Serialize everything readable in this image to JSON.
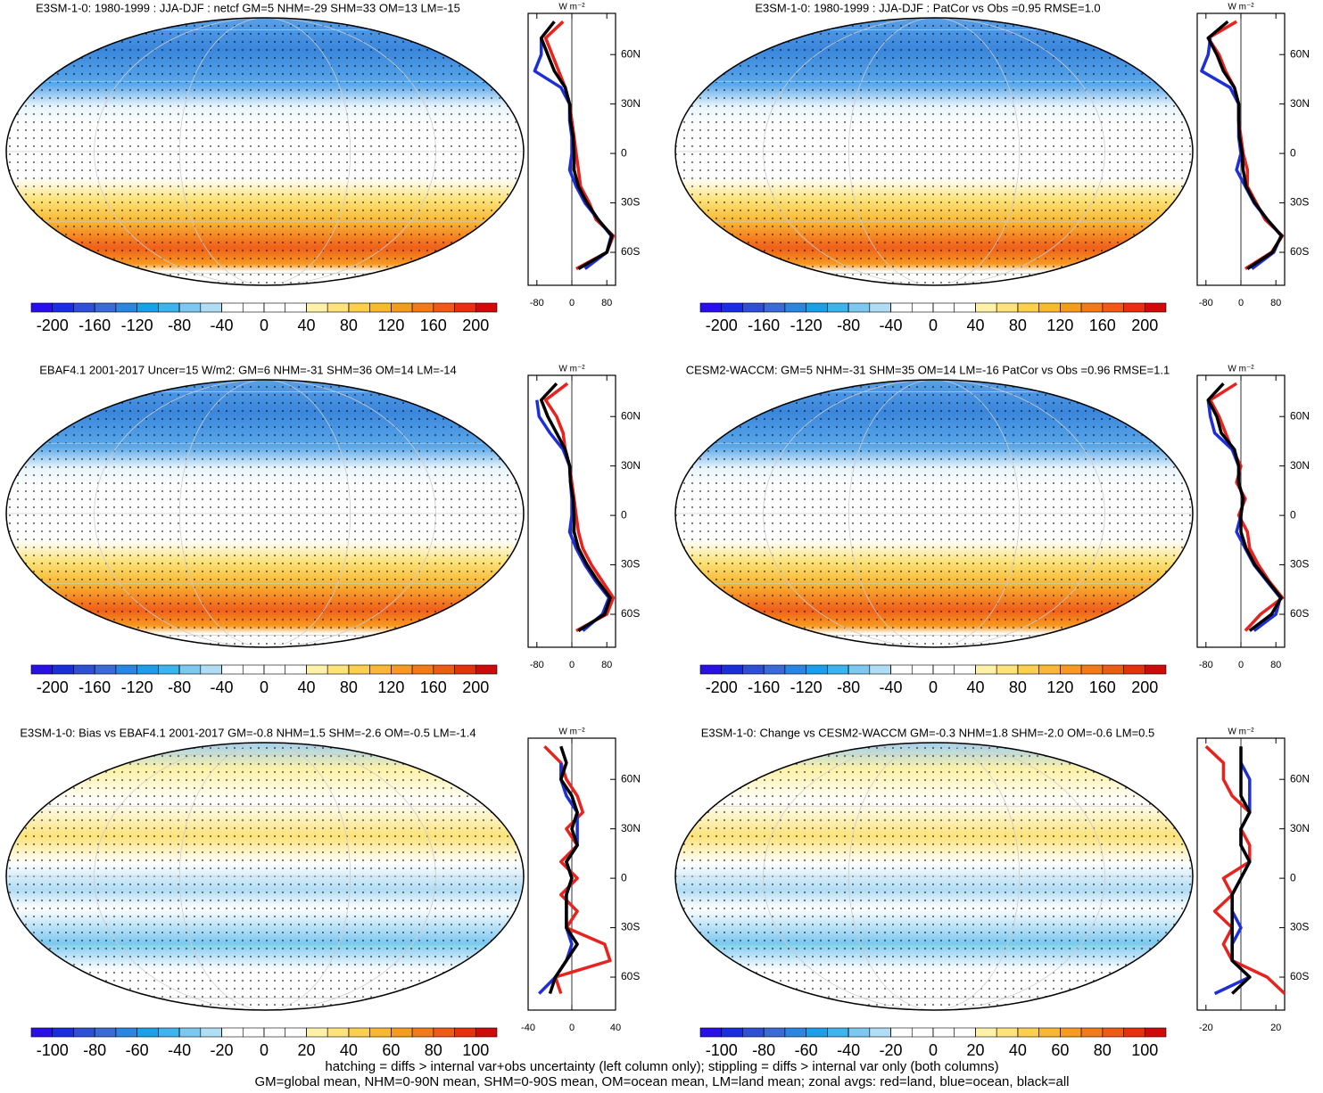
{
  "colorbar_colors": [
    "#2a10e8",
    "#1a2ee0",
    "#2e4fd6",
    "#3a6ad8",
    "#2a86e0",
    "#1aa0ea",
    "#3cb4ee",
    "#7cc8f0",
    "#b0dcf4",
    "#ffffff",
    "#ffffff",
    "#ffffff",
    "#ffffff",
    "#fff2a8",
    "#fde37a",
    "#fcd04c",
    "#f9b832",
    "#f79a20",
    "#f47a18",
    "#ef5a14",
    "#e8300f",
    "#d00a0a"
  ],
  "notes": [
    "hatching = diffs > internal var+obs uncertainty (left column only); stippling = diffs > internal var only (both columns)",
    "GM=global mean, NHM=0-90N mean, SHM=0-90S mean, OM=ocean mean, LM=land mean; zonal avgs: red=land, blue=ocean, black=all"
  ],
  "chart_data": [
    {
      "type": "map",
      "title": "E3SM-1-0: 1980-1999 : JJA-DJF : netcf GM=5 NHM=-29 SHM=33 OM=13 LM=-15",
      "colorbar": {
        "lim": [
          -220,
          220
        ],
        "ticks": [
          -200,
          -160,
          -120,
          -80,
          -40,
          0,
          40,
          80,
          120,
          160,
          200
        ]
      },
      "profile": {
        "unit": "W m⁻²",
        "xlim": [
          -100,
          100
        ],
        "xticks": [
          -80,
          0,
          80
        ],
        "ylim": [
          -80,
          85
        ],
        "yticks": [
          {
            "value": 60,
            "label": "60N"
          },
          {
            "value": 30,
            "label": "30N"
          },
          0,
          {
            "value": -30,
            "label": "30S"
          },
          {
            "value": -60,
            "label": "60S"
          }
        ],
        "lat": [
          80,
          70,
          60,
          50,
          40,
          30,
          20,
          10,
          0,
          -10,
          -20,
          -30,
          -40,
          -50,
          -60,
          -70
        ],
        "series": [
          {
            "color": "#e8221d",
            "values": [
              -20,
              -60,
              -45,
              -30,
              -15,
              -5,
              0,
              5,
              10,
              15,
              20,
              40,
              55,
              95,
              80,
              10
            ]
          },
          {
            "color": "#1f2fd6",
            "values": [
              null,
              -70,
              -70,
              -85,
              -25,
              -5,
              -5,
              0,
              0,
              -5,
              10,
              30,
              60,
              90,
              80,
              30
            ]
          },
          {
            "color": "#000000",
            "values": [
              -40,
              -70,
              -55,
              -40,
              -15,
              -5,
              -3,
              3,
              5,
              5,
              15,
              35,
              60,
              92,
              80,
              15
            ]
          }
        ]
      }
    },
    {
      "type": "map",
      "title": "E3SM-1-0: 1980-1999 : JJA-DJF : PatCor vs Obs =0.95 RMSE=1.0",
      "colorbar": {
        "lim": [
          -220,
          220
        ],
        "ticks": [
          -200,
          -160,
          -120,
          -80,
          -40,
          0,
          40,
          80,
          120,
          160,
          200
        ]
      },
      "profile": {
        "unit": "W m⁻²",
        "xlim": [
          -100,
          100
        ],
        "xticks": [
          -80,
          0,
          80
        ],
        "ylim": [
          -80,
          85
        ],
        "yticks": [
          {
            "value": 60,
            "label": "60N"
          },
          {
            "value": 30,
            "label": "30N"
          },
          0,
          {
            "value": -30,
            "label": "30S"
          },
          {
            "value": -60,
            "label": "60S"
          }
        ],
        "lat": [
          80,
          70,
          60,
          50,
          40,
          30,
          20,
          10,
          0,
          -10,
          -20,
          -30,
          -40,
          -50,
          -60,
          -70
        ],
        "series": [
          {
            "color": "#e8221d",
            "values": [
              -10,
              -75,
              -50,
              -35,
              -15,
              -5,
              -5,
              0,
              5,
              15,
              15,
              35,
              55,
              95,
              70,
              10
            ]
          },
          {
            "color": "#1f2fd6",
            "values": [
              null,
              -70,
              -75,
              -90,
              -25,
              -5,
              -5,
              -5,
              0,
              -10,
              10,
              30,
              60,
              92,
              75,
              25
            ]
          },
          {
            "color": "#000000",
            "values": [
              -30,
              -75,
              -55,
              -40,
              -15,
              -5,
              -5,
              -3,
              3,
              5,
              12,
              32,
              60,
              93,
              72,
              15
            ]
          }
        ]
      }
    },
    {
      "type": "map",
      "title": "EBAF4.1 2001-2017 Uncer=15 W/m2: GM=6 NHM=-31 SHM=36 OM=14 LM=-14",
      "colorbar": {
        "lim": [
          -220,
          220
        ],
        "ticks": [
          -200,
          -160,
          -120,
          -80,
          -40,
          0,
          40,
          80,
          120,
          160,
          200
        ]
      },
      "profile": {
        "unit": "W m⁻²",
        "xlim": [
          -100,
          100
        ],
        "xticks": [
          -80,
          0,
          80
        ],
        "ylim": [
          -80,
          85
        ],
        "yticks": [
          {
            "value": 60,
            "label": "60N"
          },
          {
            "value": 30,
            "label": "30N"
          },
          0,
          {
            "value": -30,
            "label": "30S"
          },
          {
            "value": -60,
            "label": "60S"
          }
        ],
        "lat": [
          80,
          70,
          60,
          50,
          40,
          30,
          20,
          10,
          0,
          -10,
          -20,
          -30,
          -40,
          -50,
          -60,
          -70
        ],
        "series": [
          {
            "color": "#e8221d",
            "values": [
              -10,
              -60,
              -35,
              -20,
              -15,
              -5,
              0,
              5,
              10,
              15,
              25,
              45,
              70,
              95,
              80,
              10
            ]
          },
          {
            "color": "#1f2fd6",
            "values": [
              null,
              -80,
              -75,
              -50,
              -20,
              -5,
              -3,
              0,
              0,
              -5,
              10,
              30,
              55,
              85,
              70,
              25
            ]
          },
          {
            "color": "#000000",
            "values": [
              -35,
              -70,
              -55,
              -35,
              -15,
              -5,
              -3,
              3,
              5,
              5,
              15,
              35,
              60,
              88,
              75,
              15
            ]
          }
        ]
      }
    },
    {
      "type": "map",
      "title": "CESM2-WACCM: GM=5 NHM=-31 SHM=35 OM=14 LM=-16 PatCor vs Obs =0.96 RMSE=1.1",
      "colorbar": {
        "lim": [
          -220,
          220
        ],
        "ticks": [
          -200,
          -160,
          -120,
          -80,
          -40,
          0,
          40,
          80,
          120,
          160,
          200
        ]
      },
      "profile": {
        "unit": "W m⁻²",
        "xlim": [
          -100,
          100
        ],
        "xticks": [
          -80,
          0,
          80
        ],
        "ylim": [
          -80,
          85
        ],
        "yticks": [
          {
            "value": 60,
            "label": "60N"
          },
          {
            "value": 30,
            "label": "30N"
          },
          0,
          {
            "value": -30,
            "label": "30S"
          },
          {
            "value": -60,
            "label": "60S"
          }
        ],
        "lat": [
          80,
          70,
          60,
          50,
          40,
          30,
          20,
          10,
          0,
          -10,
          -20,
          -30,
          -40,
          -50,
          -60,
          -70
        ],
        "series": [
          {
            "color": "#e8221d",
            "values": [
              -10,
              -70,
              -50,
              -35,
              -20,
              0,
              -10,
              10,
              -5,
              15,
              20,
              40,
              65,
              95,
              45,
              10
            ]
          },
          {
            "color": "#1f2fd6",
            "values": [
              null,
              -75,
              -70,
              -60,
              -20,
              -5,
              -5,
              5,
              0,
              -10,
              10,
              30,
              60,
              90,
              80,
              30
            ]
          },
          {
            "color": "#000000",
            "values": [
              -40,
              -75,
              -55,
              -45,
              -15,
              -5,
              -5,
              5,
              0,
              0,
              12,
              32,
              62,
              92,
              70,
              20
            ]
          }
        ]
      }
    },
    {
      "type": "map",
      "title": "E3SM-1-0: Bias vs EBAF4.1 2001-2017 GM=-0.8 NHM=1.5 SHM=-2.6 OM=-0.5 LM=-1.4",
      "colorbar": {
        "lim": [
          -110,
          110
        ],
        "ticks": [
          -100,
          -80,
          -60,
          -40,
          -20,
          0,
          20,
          40,
          60,
          80,
          100
        ]
      },
      "profile": {
        "unit": "W m⁻²",
        "xlim": [
          -40,
          40
        ],
        "xticks": [
          -40,
          0,
          40
        ],
        "ylim": [
          -80,
          85
        ],
        "yticks": [
          {
            "value": 60,
            "label": "60N"
          },
          {
            "value": 30,
            "label": "30N"
          },
          0,
          {
            "value": -30,
            "label": "30S"
          },
          {
            "value": -60,
            "label": "60S"
          }
        ],
        "lat": [
          80,
          70,
          60,
          50,
          40,
          30,
          20,
          10,
          0,
          -10,
          -20,
          -30,
          -40,
          -50,
          -60,
          -70
        ],
        "series": [
          {
            "color": "#e8221d",
            "values": [
              -25,
              -10,
              -5,
              5,
              10,
              -5,
              5,
              -10,
              5,
              -10,
              5,
              -5,
              30,
              35,
              -15,
              -10
            ]
          },
          {
            "color": "#1f2fd6",
            "values": [
              null,
              -10,
              -10,
              -5,
              5,
              5,
              5,
              -5,
              0,
              -5,
              -5,
              -5,
              0,
              -5,
              -15,
              -30
            ]
          },
          {
            "color": "#000000",
            "values": [
              -10,
              -5,
              -10,
              0,
              5,
              0,
              5,
              -5,
              0,
              -5,
              -5,
              -5,
              5,
              -5,
              -15,
              -20
            ]
          }
        ]
      }
    },
    {
      "type": "map",
      "title": "E3SM-1-0: Change vs CESM2-WACCM GM=-0.3 NHM=1.8 SHM=-2.0 OM=-0.6 LM=0.5",
      "colorbar": {
        "lim": [
          -110,
          110
        ],
        "ticks": [
          -100,
          -80,
          -60,
          -40,
          -20,
          0,
          20,
          40,
          60,
          80,
          100
        ]
      },
      "profile": {
        "unit": "W m⁻²",
        "xlim": [
          -25,
          25
        ],
        "xticks": [
          -20,
          20
        ],
        "ylim": [
          -80,
          85
        ],
        "yticks": [
          {
            "value": 60,
            "label": "60N"
          },
          {
            "value": 30,
            "label": "30N"
          },
          0,
          {
            "value": -30,
            "label": "30S"
          },
          {
            "value": -60,
            "label": "60S"
          }
        ],
        "lat": [
          80,
          70,
          60,
          50,
          40,
          30,
          20,
          10,
          0,
          -10,
          -20,
          -30,
          -40,
          -50,
          -60,
          -70
        ],
        "series": [
          {
            "color": "#e8221d",
            "values": [
              -20,
              -10,
              -10,
              -5,
              5,
              0,
              5,
              5,
              -10,
              -5,
              -15,
              -5,
              -10,
              -5,
              15,
              25
            ]
          },
          {
            "color": "#1f2fd6",
            "values": [
              null,
              0,
              5,
              5,
              5,
              0,
              0,
              5,
              0,
              -5,
              -5,
              0,
              -5,
              -5,
              5,
              -15
            ]
          },
          {
            "color": "#000000",
            "values": [
              0,
              0,
              0,
              0,
              5,
              0,
              0,
              5,
              0,
              -5,
              -5,
              -5,
              -5,
              -5,
              5,
              -5
            ]
          }
        ]
      }
    }
  ]
}
